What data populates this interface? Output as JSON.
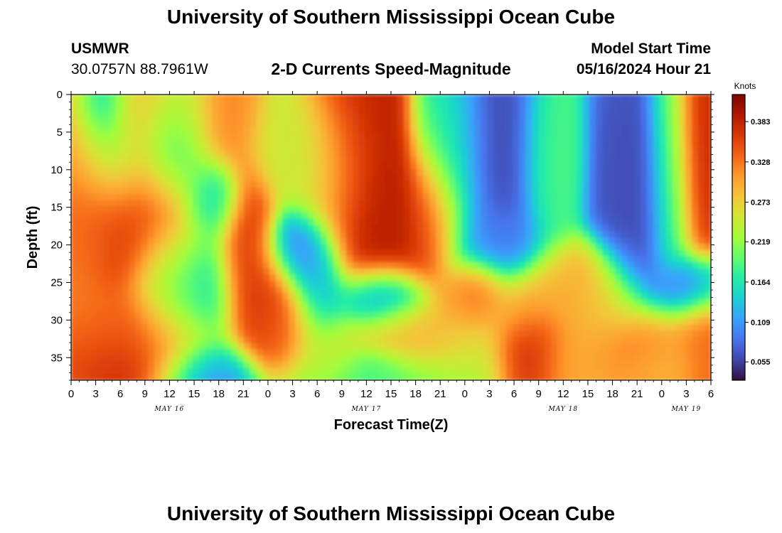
{
  "page": {
    "title": "University of Southern Mississippi Ocean Cube",
    "footer_title": "University of Southern Mississippi Ocean Cube"
  },
  "station": {
    "id": "USMWR",
    "coords": "30.0757N  88.7961W"
  },
  "model": {
    "start_label": "Model Start Time",
    "start_value": "05/16/2024 Hour 21"
  },
  "chart_data": {
    "type": "heatmap",
    "title": "2-D Currents Speed-Magnitude",
    "xlabel": "Forecast Time(Z)",
    "ylabel": "Depth (ft)",
    "colorbar_label": "Knots",
    "x_tick_labels": [
      "0",
      "3",
      "6",
      "9",
      "12",
      "15",
      "18",
      "21",
      "0",
      "3",
      "6",
      "9",
      "12",
      "15",
      "18",
      "21",
      "0",
      "3",
      "6",
      "9",
      "12",
      "15",
      "18",
      "21",
      "0",
      "3",
      "6"
    ],
    "x_range_hours": [
      0,
      78
    ],
    "date_labels": [
      {
        "label": "MAY 16",
        "hour": 12
      },
      {
        "label": "MAY 17",
        "hour": 36
      },
      {
        "label": "MAY 18",
        "hour": 60
      },
      {
        "label": "MAY 19",
        "hour": 75
      }
    ],
    "y_ticks": [
      0,
      5,
      10,
      15,
      20,
      25,
      30,
      35
    ],
    "y_range_ft": [
      0,
      38
    ],
    "y_reversed": true,
    "colorbar_ticks": [
      0.055,
      0.109,
      0.164,
      0.219,
      0.273,
      0.328,
      0.383
    ],
    "colorbar_tick_labels": [
      "0.055",
      "0.109",
      "0.164",
      "0.219",
      "0.273",
      "0.328",
      "0.383"
    ],
    "value_range": [
      0.03,
      0.42
    ],
    "colormap": [
      "#30123b",
      "#4145ab",
      "#4675ed",
      "#39a2fc",
      "#1bcfd4",
      "#24eca6",
      "#61fc6c",
      "#a4fc3b",
      "#d1e834",
      "#f3c63a",
      "#fe9b2d",
      "#f36315",
      "#d93806",
      "#b11901",
      "#7a0402"
    ],
    "background_speed": 0.2,
    "features": [
      {
        "hour": 3.5,
        "depth": 2,
        "sh": 2,
        "sd": 4,
        "speed": 0.09
      },
      {
        "hour": 5,
        "depth": 9,
        "sh": 3,
        "sd": 3.5,
        "speed": 0.15
      },
      {
        "hour": 3,
        "depth": 13,
        "sh": 4,
        "sd": 6,
        "speed": 0.34
      },
      {
        "hour": 1,
        "depth": 13,
        "sh": 2,
        "sd": 12,
        "speed": 0.32
      },
      {
        "hour": 8,
        "depth": 15,
        "sh": 5,
        "sd": 7,
        "speed": 0.37
      },
      {
        "hour": 8,
        "depth": 1,
        "sh": 2.5,
        "sd": 4,
        "speed": 0.27
      },
      {
        "hour": 5,
        "depth": 31,
        "sh": 5,
        "sd": 3,
        "speed": 0.32
      },
      {
        "hour": 7,
        "depth": 34,
        "sh": 6,
        "sd": 3.5,
        "speed": 0.38
      },
      {
        "hour": 12,
        "depth": 26,
        "sh": 2.5,
        "sd": 6,
        "speed": 0.2
      },
      {
        "hour": 12.5,
        "depth": 8,
        "sh": 2.5,
        "sd": 4,
        "speed": 0.14
      },
      {
        "hour": 17,
        "depth": 14,
        "sh": 2,
        "sd": 3,
        "speed": 0.13
      },
      {
        "hour": 16,
        "depth": 26,
        "sh": 2.5,
        "sd": 5,
        "speed": 0.15
      },
      {
        "hour": 16.5,
        "depth": 37,
        "sh": 3,
        "sd": 2.5,
        "speed": 0.08
      },
      {
        "hour": 14,
        "depth": 2,
        "sh": 2,
        "sd": 4,
        "speed": 0.24
      },
      {
        "hour": 18.5,
        "depth": 3,
        "sh": 2.5,
        "sd": 4,
        "speed": 0.32
      },
      {
        "hour": 21.5,
        "depth": 21,
        "sh": 2,
        "sd": 6,
        "speed": 0.37
      },
      {
        "hour": 24,
        "depth": 27,
        "sh": 2.5,
        "sd": 4,
        "speed": 0.37
      },
      {
        "hour": 26,
        "depth": 31,
        "sh": 2.5,
        "sd": 3,
        "speed": 0.34
      },
      {
        "hour": 28,
        "depth": 21,
        "sh": 2.5,
        "sd": 3,
        "speed": 0.07
      },
      {
        "hour": 30,
        "depth": 27,
        "sh": 2,
        "sd": 4,
        "speed": 0.12
      },
      {
        "hour": 31,
        "depth": 34,
        "sh": 2.5,
        "sd": 3,
        "speed": 0.26
      },
      {
        "hour": 27,
        "depth": 7,
        "sh": 3,
        "sd": 4,
        "speed": 0.25
      },
      {
        "hour": 32,
        "depth": 10,
        "sh": 3,
        "sd": 6,
        "speed": 0.23
      },
      {
        "hour": 34.5,
        "depth": 5,
        "sh": 3,
        "sd": 7,
        "speed": 0.39
      },
      {
        "hour": 36,
        "depth": 12,
        "sh": 3,
        "sd": 8,
        "speed": 0.4
      },
      {
        "hour": 40,
        "depth": 17,
        "sh": 4,
        "sd": 6,
        "speed": 0.39
      },
      {
        "hour": 44,
        "depth": 16,
        "sh": 2,
        "sd": 5,
        "speed": 0.33
      },
      {
        "hour": 38,
        "depth": 27,
        "sh": 3,
        "sd": 2.5,
        "speed": 0.05
      },
      {
        "hour": 39,
        "depth": 37,
        "sh": 6,
        "sd": 2,
        "speed": 0.18
      },
      {
        "hour": 40,
        "depth": 31,
        "sh": 3,
        "sd": 2,
        "speed": 0.28
      },
      {
        "hour": 43,
        "depth": 33,
        "sh": 3,
        "sd": 3,
        "speed": 0.3
      },
      {
        "hour": 45,
        "depth": 6,
        "sh": 2,
        "sd": 5,
        "speed": 0.18
      },
      {
        "hour": 47,
        "depth": 8,
        "sh": 2,
        "sd": 8,
        "speed": 0.14
      },
      {
        "hour": 48,
        "depth": 28,
        "sh": 2,
        "sd": 2.5,
        "speed": 0.31
      },
      {
        "hour": 49.5,
        "depth": 26,
        "sh": 2,
        "sd": 2.5,
        "speed": 0.36
      },
      {
        "hour": 48,
        "depth": 34,
        "sh": 3,
        "sd": 3,
        "speed": 0.26
      },
      {
        "hour": 52,
        "depth": 8,
        "sh": 3,
        "sd": 9,
        "speed": 0.06
      },
      {
        "hour": 52,
        "depth": 20,
        "sh": 3,
        "sd": 3,
        "speed": 0.1
      },
      {
        "hour": 55,
        "depth": 28,
        "sh": 3,
        "sd": 3,
        "speed": 0.3
      },
      {
        "hour": 56,
        "depth": 34,
        "sh": 2.5,
        "sd": 3.5,
        "speed": 0.38
      },
      {
        "hour": 58.5,
        "depth": 9,
        "sh": 2,
        "sd": 7,
        "speed": 0.19
      },
      {
        "hour": 61,
        "depth": 25,
        "sh": 3,
        "sd": 3,
        "speed": 0.3
      },
      {
        "hour": 61,
        "depth": 35,
        "sh": 2.5,
        "sd": 3,
        "speed": 0.3
      },
      {
        "hour": 65,
        "depth": 30,
        "sh": 3,
        "sd": 4,
        "speed": 0.29
      },
      {
        "hour": 69,
        "depth": 12,
        "sh": 3,
        "sd": 10,
        "speed": 0.06
      },
      {
        "hour": 69,
        "depth": 34,
        "sh": 3,
        "sd": 3,
        "speed": 0.36
      },
      {
        "hour": 73,
        "depth": 8,
        "sh": 1.5,
        "sd": 10,
        "speed": 0.21
      },
      {
        "hour": 76.5,
        "depth": 6,
        "sh": 2,
        "sd": 9,
        "speed": 0.38
      },
      {
        "hour": 75,
        "depth": 26,
        "sh": 2.5,
        "sd": 2.5,
        "speed": 0.06
      },
      {
        "hour": 74,
        "depth": 33,
        "sh": 3,
        "sd": 3,
        "speed": 0.3
      },
      {
        "hour": 77,
        "depth": 33,
        "sh": 2,
        "sd": 4,
        "speed": 0.35
      },
      {
        "hour": 71,
        "depth": 36,
        "sh": 3,
        "sd": 2,
        "speed": 0.28
      }
    ]
  }
}
